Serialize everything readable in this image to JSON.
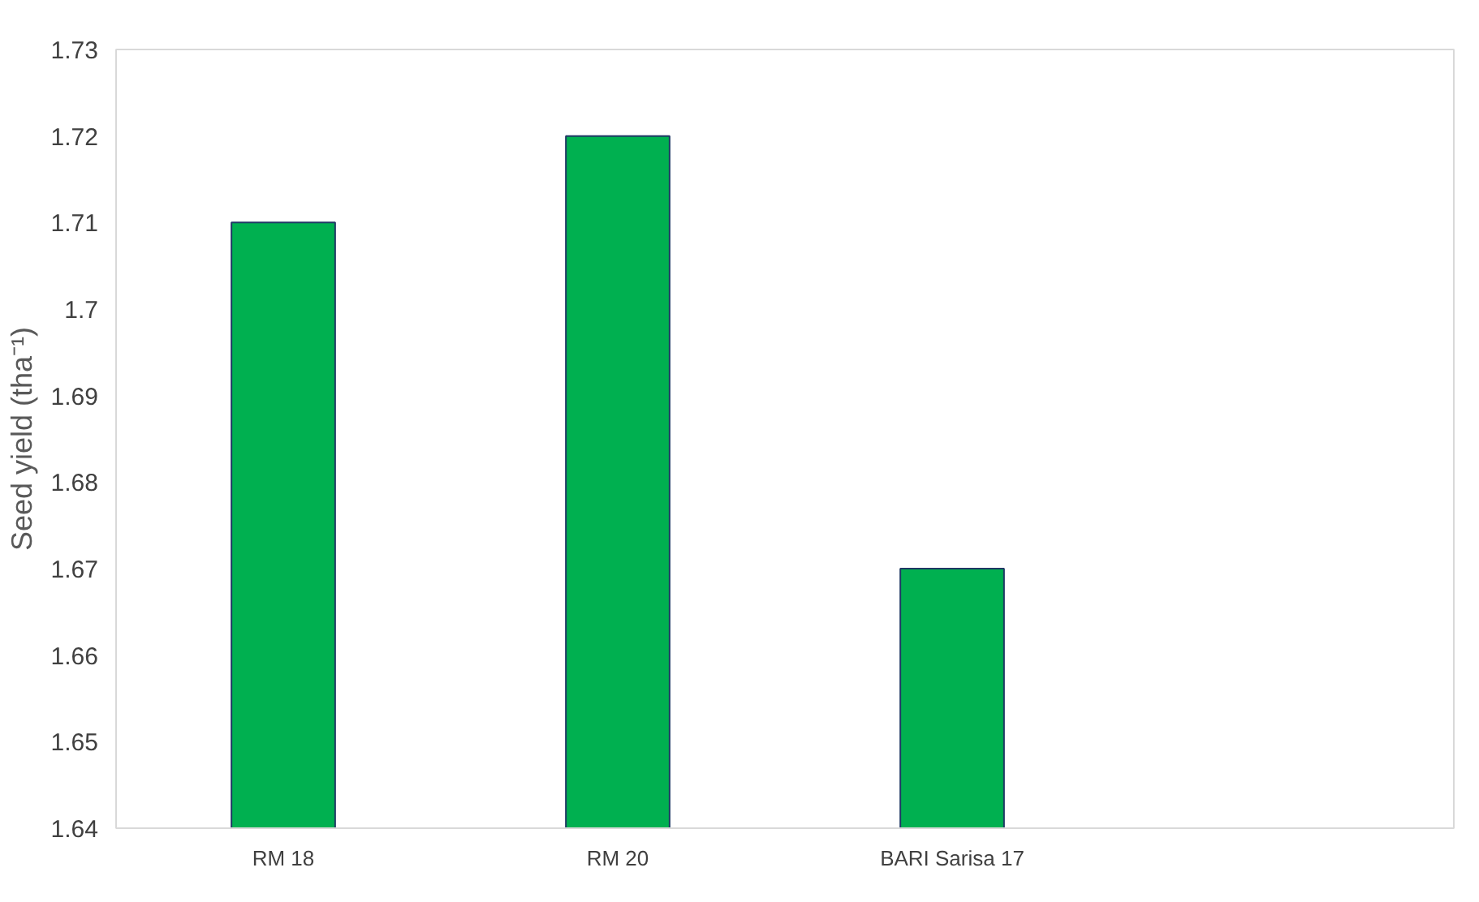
{
  "chart_data": {
    "type": "bar",
    "ylabel": "Seed yield (tha⁻¹)",
    "categories": [
      "RM 18",
      "RM 20",
      "BARI Sarisa 17",
      null
    ],
    "values": [
      1.71,
      1.72,
      1.67,
      null
    ],
    "color": "#00b050",
    "ylim": [
      1.64,
      1.73
    ],
    "yticks": [
      1.64,
      1.65,
      1.66,
      1.67,
      1.68,
      1.69,
      1.7,
      1.71,
      1.72,
      1.73
    ],
    "grid": false
  }
}
